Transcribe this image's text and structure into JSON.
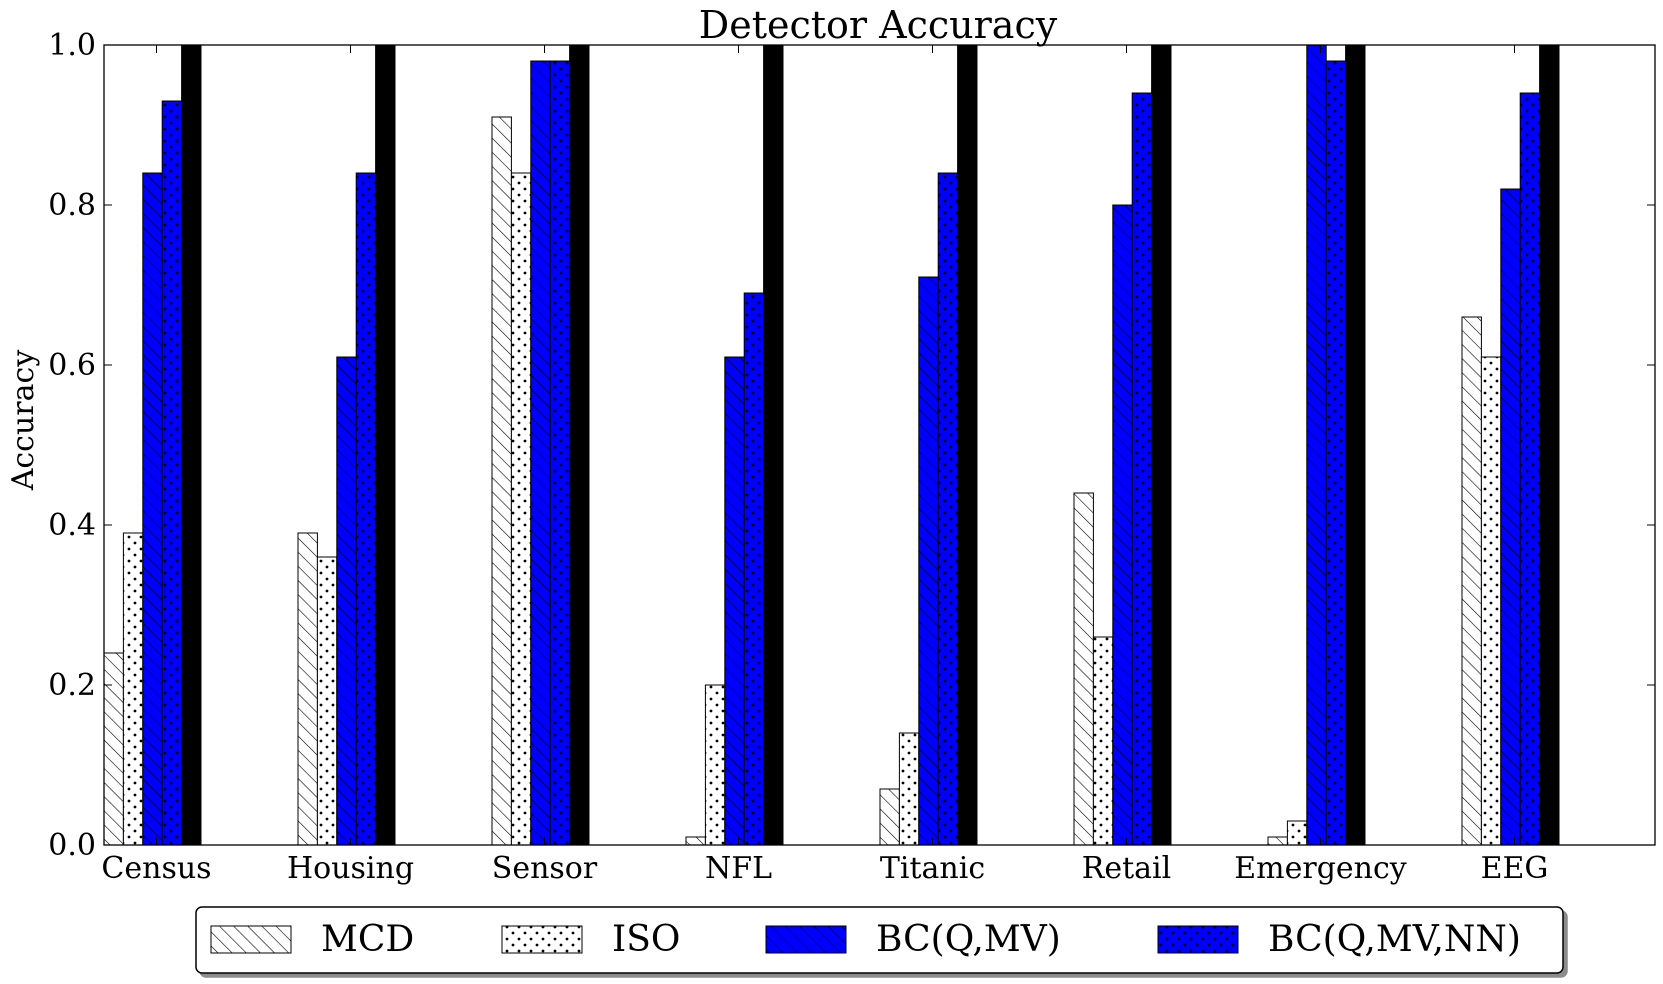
{
  "chart_data": {
    "type": "bar",
    "title": "Detector Accuracy",
    "ylabel": "Accuracy",
    "xlabel": "",
    "ylim": [
      0,
      1.0
    ],
    "yticks": [
      "0.0",
      "0.2",
      "0.4",
      "0.6",
      "0.8",
      "1.0"
    ],
    "categories": [
      "Census",
      "Housing",
      "Sensor",
      "NFL",
      "Titanic",
      "Retail",
      "Emergency",
      "EEG"
    ],
    "series": [
      {
        "name": "MCD",
        "fill": "#ffffff",
        "pattern": "hatch",
        "values": [
          0.24,
          0.39,
          0.91,
          0.01,
          0.07,
          0.44,
          0.01,
          0.66
        ]
      },
      {
        "name": "ISO",
        "fill": "#ffffff",
        "pattern": "dots",
        "values": [
          0.39,
          0.36,
          0.84,
          0.2,
          0.14,
          0.26,
          0.03,
          0.61
        ]
      },
      {
        "name": "BC(Q,MV)",
        "fill": "#0000ff",
        "pattern": "hatch",
        "values": [
          0.84,
          0.61,
          0.98,
          0.61,
          0.71,
          0.8,
          1.0,
          0.82
        ]
      },
      {
        "name": "BC(Q,MV,NN)",
        "fill": "#0000ff",
        "pattern": "dots",
        "values": [
          0.93,
          0.84,
          0.98,
          0.69,
          0.84,
          0.94,
          0.98,
          0.94
        ]
      },
      {
        "name": "",
        "fill": "#000000",
        "pattern": "none",
        "values": [
          1.0,
          1.0,
          1.0,
          1.0,
          1.0,
          1.0,
          1.0,
          1.0
        ]
      }
    ],
    "grid": false,
    "legend": "bottom"
  }
}
